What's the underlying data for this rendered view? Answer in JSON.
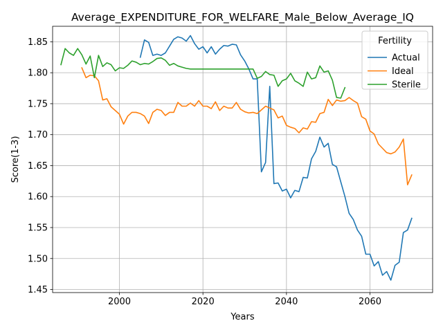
{
  "chart_data": {
    "type": "line",
    "title": "Average_EXPENDITURE_FOR_WELFARE_Male_Below_Average_IQ",
    "xlabel": "Years",
    "ylabel": "Score(1-3)",
    "xlim": [
      1984,
      2075
    ],
    "ylim": [
      1.445,
      1.875
    ],
    "xticks": [
      2000,
      2020,
      2040,
      2060
    ],
    "yticks": [
      1.45,
      1.5,
      1.55,
      1.6,
      1.65,
      1.7,
      1.75,
      1.8,
      1.85
    ],
    "xtick_labels": [
      "2000",
      "2020",
      "2040",
      "2060"
    ],
    "ytick_labels": [
      "1.45",
      "1.50",
      "1.55",
      "1.60",
      "1.65",
      "1.70",
      "1.75",
      "1.80",
      "1.85"
    ],
    "grid": true,
    "legend": {
      "title": "Fertility",
      "position": "top-right"
    },
    "series": [
      {
        "name": "Actual",
        "color": "#1f77b4",
        "x": [
          2005,
          2006,
          2007,
          2008,
          2009,
          2010,
          2011,
          2012,
          2013,
          2014,
          2015,
          2016,
          2017,
          2018,
          2019,
          2020,
          2021,
          2022,
          2023,
          2024,
          2025,
          2026,
          2027,
          2028,
          2029,
          2030,
          2031,
          2032,
          2033,
          2034,
          2035,
          2036,
          2037,
          2038,
          2039,
          2040,
          2041,
          2042,
          2043,
          2044,
          2045,
          2046,
          2047,
          2048,
          2049,
          2050,
          2051,
          2052,
          2053,
          2054,
          2055,
          2056,
          2057,
          2058,
          2059,
          2060,
          2061,
          2062,
          2063,
          2064,
          2065,
          2066,
          2067,
          2068,
          2069,
          2070
        ],
        "values": [
          1.825,
          1.853,
          1.849,
          1.828,
          1.83,
          1.828,
          1.832,
          1.843,
          1.854,
          1.858,
          1.856,
          1.851,
          1.86,
          1.847,
          1.838,
          1.842,
          1.832,
          1.842,
          1.83,
          1.838,
          1.844,
          1.843,
          1.846,
          1.845,
          1.829,
          1.819,
          1.806,
          1.79,
          1.79,
          1.64,
          1.655,
          1.778,
          1.621,
          1.622,
          1.609,
          1.612,
          1.598,
          1.61,
          1.608,
          1.631,
          1.63,
          1.661,
          1.673,
          1.696,
          1.68,
          1.686,
          1.652,
          1.648,
          1.624,
          1.6,
          1.573,
          1.563,
          1.546,
          1.536,
          1.507,
          1.507,
          1.488,
          1.495,
          1.473,
          1.479,
          1.465,
          1.489,
          1.494,
          1.542,
          1.546,
          1.565
        ]
      },
      {
        "name": "Ideal",
        "color": "#ff7f0e",
        "x": [
          1991,
          1992,
          1993,
          1994,
          1995,
          1996,
          1997,
          1998,
          1999,
          2000,
          2001,
          2002,
          2003,
          2004,
          2005,
          2006,
          2007,
          2008,
          2009,
          2010,
          2011,
          2012,
          2013,
          2014,
          2015,
          2016,
          2017,
          2018,
          2019,
          2020,
          2021,
          2022,
          2023,
          2024,
          2025,
          2026,
          2027,
          2028,
          2029,
          2030,
          2031,
          2032,
          2033,
          2034,
          2035,
          2036,
          2037,
          2038,
          2039,
          2040,
          2041,
          2042,
          2043,
          2044,
          2045,
          2046,
          2047,
          2048,
          2049,
          2050,
          2051,
          2052,
          2053,
          2054,
          2055,
          2056,
          2057,
          2058,
          2059,
          2060,
          2061,
          2062,
          2063,
          2064,
          2065,
          2066,
          2067,
          2068,
          2069,
          2070
        ],
        "values": [
          1.808,
          1.792,
          1.796,
          1.795,
          1.787,
          1.756,
          1.758,
          1.745,
          1.739,
          1.733,
          1.717,
          1.73,
          1.736,
          1.736,
          1.734,
          1.73,
          1.718,
          1.736,
          1.741,
          1.739,
          1.731,
          1.736,
          1.736,
          1.752,
          1.746,
          1.746,
          1.751,
          1.746,
          1.755,
          1.746,
          1.746,
          1.742,
          1.753,
          1.739,
          1.746,
          1.743,
          1.743,
          1.752,
          1.741,
          1.737,
          1.735,
          1.736,
          1.734,
          1.74,
          1.746,
          1.743,
          1.74,
          1.727,
          1.73,
          1.715,
          1.712,
          1.71,
          1.703,
          1.711,
          1.709,
          1.721,
          1.72,
          1.734,
          1.736,
          1.757,
          1.747,
          1.756,
          1.754,
          1.755,
          1.76,
          1.755,
          1.751,
          1.729,
          1.725,
          1.706,
          1.701,
          1.685,
          1.678,
          1.671,
          1.669,
          1.672,
          1.68,
          1.693,
          1.619,
          1.635
        ]
      },
      {
        "name": "Sterile",
        "color": "#2ca02c",
        "x": [
          1986,
          1987,
          1988,
          1989,
          1990,
          1991,
          1992,
          1993,
          1994,
          1995,
          1996,
          1997,
          1998,
          1999,
          2000,
          2001,
          2002,
          2003,
          2004,
          2005,
          2006,
          2007,
          2008,
          2009,
          2010,
          2011,
          2012,
          2013,
          2014,
          2015,
          2016,
          2017,
          2018,
          2019,
          2020,
          2021,
          2022,
          2023,
          2024,
          2025,
          2026,
          2027,
          2028,
          2029,
          2030,
          2031,
          2032,
          2033,
          2034,
          2035,
          2036,
          2037,
          2038,
          2039,
          2040,
          2041,
          2042,
          2043,
          2044,
          2045,
          2046,
          2047,
          2048,
          2049,
          2050,
          2051,
          2052,
          2053,
          2054
        ],
        "values": [
          1.813,
          1.839,
          1.832,
          1.828,
          1.839,
          1.829,
          1.814,
          1.827,
          1.792,
          1.828,
          1.81,
          1.816,
          1.813,
          1.803,
          1.808,
          1.807,
          1.812,
          1.819,
          1.817,
          1.813,
          1.815,
          1.814,
          1.818,
          1.823,
          1.824,
          1.82,
          1.812,
          1.815,
          1.811,
          1.809,
          1.807,
          1.806,
          1.806,
          1.806,
          1.806,
          1.806,
          1.806,
          1.806,
          1.806,
          1.806,
          1.806,
          1.806,
          1.806,
          1.806,
          1.806,
          1.806,
          1.806,
          1.791,
          1.794,
          1.802,
          1.797,
          1.796,
          1.778,
          1.787,
          1.79,
          1.799,
          1.787,
          1.783,
          1.778,
          1.801,
          1.79,
          1.792,
          1.811,
          1.801,
          1.803,
          1.788,
          1.76,
          1.759,
          1.776
        ]
      }
    ]
  }
}
